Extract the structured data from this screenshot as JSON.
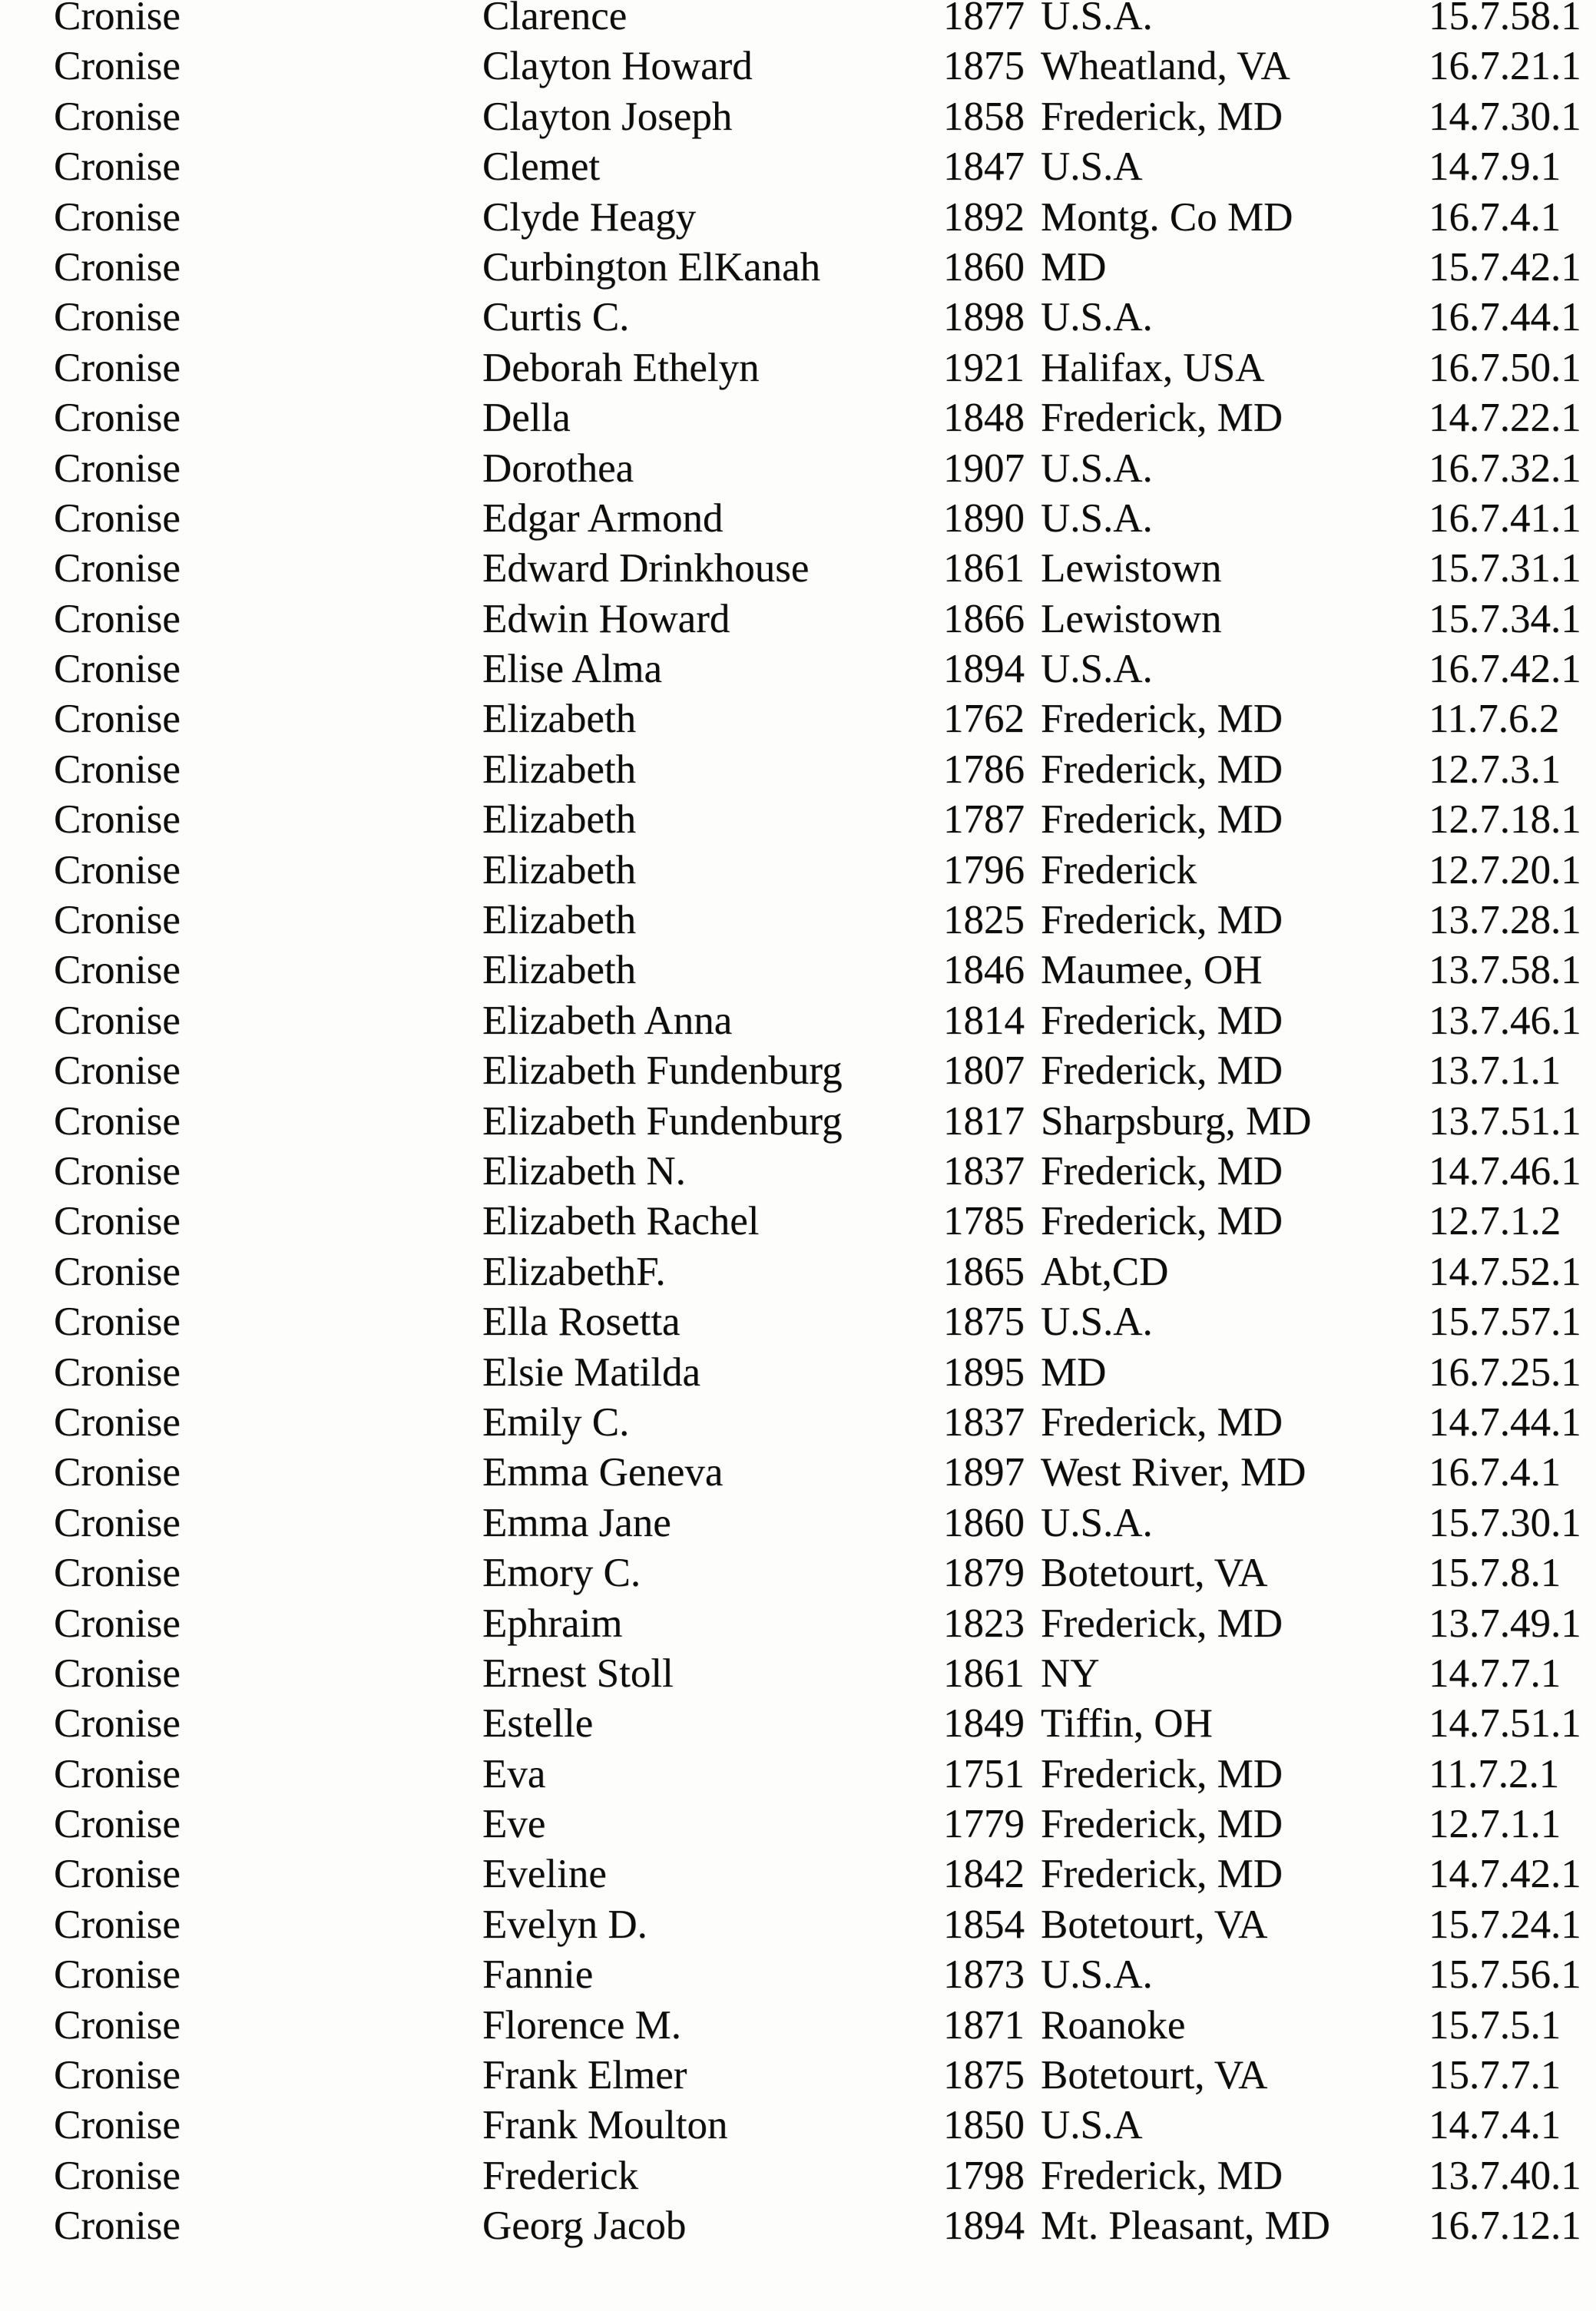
{
  "page": {
    "kind": "scanned genealogy surname index page",
    "text_color": "#0d0d0d",
    "background_color": "#fdfdfc"
  },
  "table": {
    "rows": [
      {
        "surname": "Cronise",
        "given_name": "Clarence",
        "year": "1877",
        "place": "U.S.A.",
        "reference": "15.7.58.1"
      },
      {
        "surname": "Cronise",
        "given_name": "Clayton Howard",
        "year": "1875",
        "place": "Wheatland, VA",
        "reference": "16.7.21.1"
      },
      {
        "surname": "Cronise",
        "given_name": "Clayton Joseph",
        "year": "1858",
        "place": "Frederick, MD",
        "reference": "14.7.30.1"
      },
      {
        "surname": "Cronise",
        "given_name": "Clemet",
        "year": "1847",
        "place": "U.S.A",
        "reference": "14.7.9.1"
      },
      {
        "surname": "Cronise",
        "given_name": "Clyde Heagy",
        "year": "1892",
        "place": "Montg. Co MD",
        "reference": "16.7.4.1"
      },
      {
        "surname": "Cronise",
        "given_name": "Curbington ElKanah",
        "year": "1860",
        "place": "MD",
        "reference": "15.7.42.1"
      },
      {
        "surname": "Cronise",
        "given_name": "Curtis C.",
        "year": "1898",
        "place": "U.S.A.",
        "reference": "16.7.44.1"
      },
      {
        "surname": "Cronise",
        "given_name": "Deborah Ethelyn",
        "year": "1921",
        "place": "Halifax, USA",
        "reference": "16.7.50.1"
      },
      {
        "surname": "Cronise",
        "given_name": "Della",
        "year": "1848",
        "place": "Frederick, MD",
        "reference": "14.7.22.1"
      },
      {
        "surname": "Cronise",
        "given_name": "Dorothea",
        "year": "1907",
        "place": "U.S.A.",
        "reference": "16.7.32.1"
      },
      {
        "surname": "Cronise",
        "given_name": "Edgar Armond",
        "year": "1890",
        "place": "U.S.A.",
        "reference": "16.7.41.1"
      },
      {
        "surname": "Cronise",
        "given_name": "Edward Drinkhouse",
        "year": "1861",
        "place": "Lewistown",
        "reference": "15.7.31.1"
      },
      {
        "surname": "Cronise",
        "given_name": "Edwin Howard",
        "year": "1866",
        "place": "Lewistown",
        "reference": "15.7.34.1"
      },
      {
        "surname": "Cronise",
        "given_name": "Elise Alma",
        "year": "1894",
        "place": "U.S.A.",
        "reference": "16.7.42.1"
      },
      {
        "surname": "Cronise",
        "given_name": "Elizabeth",
        "year": "1762",
        "place": "Frederick, MD",
        "reference": "11.7.6.2"
      },
      {
        "surname": "Cronise",
        "given_name": "Elizabeth",
        "year": "1786",
        "place": "Frederick, MD",
        "reference": "12.7.3.1"
      },
      {
        "surname": "Cronise",
        "given_name": "Elizabeth",
        "year": "1787",
        "place": "Frederick, MD",
        "reference": "12.7.18.1"
      },
      {
        "surname": "Cronise",
        "given_name": "Elizabeth",
        "year": "1796",
        "place": "Frederick",
        "reference": "12.7.20.1"
      },
      {
        "surname": "Cronise",
        "given_name": "Elizabeth",
        "year": "1825",
        "place": "Frederick, MD",
        "reference": "13.7.28.1"
      },
      {
        "surname": "Cronise",
        "given_name": "Elizabeth",
        "year": "1846",
        "place": "Maumee, OH",
        "reference": "13.7.58.1"
      },
      {
        "surname": "Cronise",
        "given_name": "Elizabeth Anna",
        "year": "1814",
        "place": "Frederick, MD",
        "reference": "13.7.46.1"
      },
      {
        "surname": "Cronise",
        "given_name": "Elizabeth Fundenburg",
        "year": "1807",
        "place": "Frederick, MD",
        "reference": "13.7.1.1"
      },
      {
        "surname": "Cronise",
        "given_name": "Elizabeth Fundenburg",
        "year": "1817",
        "place": "Sharpsburg, MD",
        "reference": "13.7.51.1"
      },
      {
        "surname": "Cronise",
        "given_name": "Elizabeth N.",
        "year": "1837",
        "place": "Frederick, MD",
        "reference": "14.7.46.1"
      },
      {
        "surname": "Cronise",
        "given_name": "Elizabeth Rachel",
        "year": "1785",
        "place": "Frederick, MD",
        "reference": "12.7.1.2"
      },
      {
        "surname": "Cronise",
        "given_name": "ElizabethF.",
        "year": "1865",
        "place": "Abt,CD",
        "reference": "14.7.52.1"
      },
      {
        "surname": "Cronise",
        "given_name": "Ella Rosetta",
        "year": "1875",
        "place": "U.S.A.",
        "reference": "15.7.57.1"
      },
      {
        "surname": "Cronise",
        "given_name": "Elsie Matilda",
        "year": "1895",
        "place": "MD",
        "reference": "16.7.25.1"
      },
      {
        "surname": "Cronise",
        "given_name": "Emily C.",
        "year": "1837",
        "place": "Frederick, MD",
        "reference": "14.7.44.1"
      },
      {
        "surname": "Cronise",
        "given_name": "Emma Geneva",
        "year": "1897",
        "place": "West River, MD",
        "reference": "16.7.4.1"
      },
      {
        "surname": "Cronise",
        "given_name": "Emma Jane",
        "year": "1860",
        "place": "U.S.A.",
        "reference": "15.7.30.1"
      },
      {
        "surname": "Cronise",
        "given_name": "Emory C.",
        "year": "1879",
        "place": "Botetourt, VA",
        "reference": "15.7.8.1"
      },
      {
        "surname": "Cronise",
        "given_name": "Ephraim",
        "year": "1823",
        "place": "Frederick, MD",
        "reference": "13.7.49.1"
      },
      {
        "surname": "Cronise",
        "given_name": "Ernest Stoll",
        "year": "1861",
        "place": "NY",
        "reference": "14.7.7.1"
      },
      {
        "surname": "Cronise",
        "given_name": "Estelle",
        "year": "1849",
        "place": "Tiffin, OH",
        "reference": "14.7.51.1"
      },
      {
        "surname": "Cronise",
        "given_name": "Eva",
        "year": "1751",
        "place": "Frederick, MD",
        "reference": "11.7.2.1"
      },
      {
        "surname": "Cronise",
        "given_name": "Eve",
        "year": "1779",
        "place": "Frederick, MD",
        "reference": "12.7.1.1"
      },
      {
        "surname": "Cronise",
        "given_name": "Eveline",
        "year": "1842",
        "place": "Frederick, MD",
        "reference": "14.7.42.1"
      },
      {
        "surname": "Cronise",
        "given_name": "Evelyn D.",
        "year": "1854",
        "place": "Botetourt, VA",
        "reference": "15.7.24.1"
      },
      {
        "surname": "Cronise",
        "given_name": "Fannie",
        "year": "1873",
        "place": "U.S.A.",
        "reference": "15.7.56.1"
      },
      {
        "surname": "Cronise",
        "given_name": "Florence M.",
        "year": "1871",
        "place": "Roanoke",
        "reference": "15.7.5.1"
      },
      {
        "surname": "Cronise",
        "given_name": "Frank Elmer",
        "year": "1875",
        "place": "Botetourt, VA",
        "reference": "15.7.7.1"
      },
      {
        "surname": "Cronise",
        "given_name": "Frank Moulton",
        "year": "1850",
        "place": "U.S.A",
        "reference": "14.7.4.1"
      },
      {
        "surname": "Cronise",
        "given_name": "Frederick",
        "year": "1798",
        "place": "Frederick, MD",
        "reference": "13.7.40.1"
      },
      {
        "surname": "Cronise",
        "given_name": "Georg Jacob",
        "year": "1894",
        "place": "Mt. Pleasant, MD",
        "reference": "16.7.12.1"
      }
    ]
  }
}
